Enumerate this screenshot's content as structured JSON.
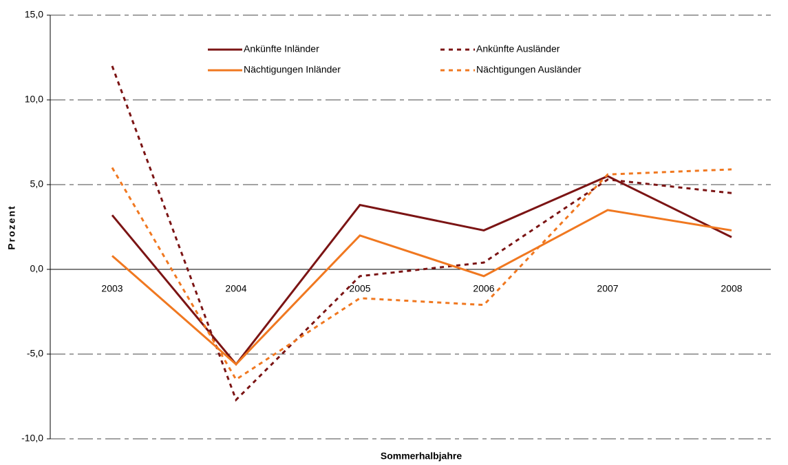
{
  "chart_data": {
    "type": "line",
    "x_label": "Sommerhalbjahre",
    "y_label": "Prozent",
    "categories": [
      "2003",
      "2004",
      "2005",
      "2006",
      "2007",
      "2008"
    ],
    "series": [
      {
        "name": "Ankünfte Inländer",
        "color": "#7b1414",
        "style": "solid",
        "values": [
          3.2,
          -5.6,
          3.8,
          2.3,
          5.5,
          1.9
        ]
      },
      {
        "name": "Ankünfte Ausländer",
        "color": "#7b1414",
        "style": "dotted",
        "values": [
          12.0,
          -7.7,
          -0.4,
          0.4,
          5.3,
          4.5
        ]
      },
      {
        "name": "Nächtigungen Inländer",
        "color": "#f07820",
        "style": "solid",
        "values": [
          0.8,
          -5.6,
          2.0,
          -0.4,
          3.5,
          2.3
        ]
      },
      {
        "name": "Nächtigungen Ausländer",
        "color": "#f07820",
        "style": "dotted",
        "values": [
          6.0,
          -6.5,
          -1.7,
          -2.1,
          5.6,
          5.9
        ]
      }
    ],
    "ylim": [
      -10,
      15
    ],
    "yticks": [
      {
        "value": -10,
        "label": "-10,0"
      },
      {
        "value": -5,
        "label": "-5,0"
      },
      {
        "value": 0,
        "label": "0,0"
      },
      {
        "value": 5,
        "label": "5,0"
      },
      {
        "value": 10,
        "label": "10,0"
      },
      {
        "value": 15,
        "label": "15,0"
      }
    ],
    "grid": true,
    "legend": "top"
  }
}
